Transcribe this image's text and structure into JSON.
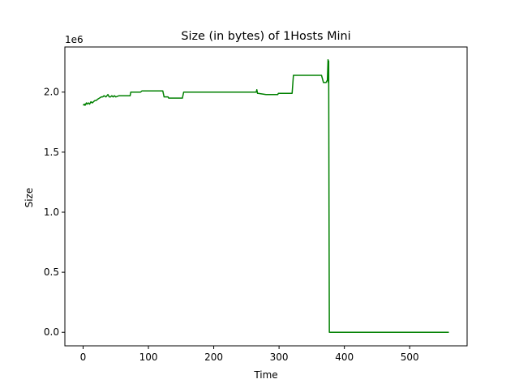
{
  "chart_data": {
    "type": "line",
    "title": "Size (in bytes) of 1Hosts Mini",
    "xlabel": "Time",
    "ylabel": "Size",
    "y_offset_label": "1e6",
    "xlim": [
      -27.9,
      587.9
    ],
    "ylim": [
      -0.113,
      2.376
    ],
    "y_scale_multiplier": 1000000,
    "x_ticks": [
      0,
      100,
      200,
      300,
      400,
      500
    ],
    "x_tick_labels": [
      "0",
      "100",
      "200",
      "300",
      "400",
      "500"
    ],
    "y_ticks": [
      0.0,
      0.5,
      1.0,
      1.5,
      2.0
    ],
    "y_tick_labels": [
      "0.0",
      "0.5",
      "1.0",
      "1.5",
      "2.0"
    ],
    "grid": false,
    "series": [
      {
        "color": "#008000",
        "x": [
          0,
          2,
          3,
          5,
          6,
          8,
          10,
          12,
          14,
          16,
          18,
          20,
          22,
          25,
          28,
          30,
          32,
          35,
          38,
          40,
          42,
          44,
          46,
          48,
          50,
          55,
          60,
          72,
          73,
          88,
          90,
          122,
          124,
          130,
          131,
          152,
          154,
          265,
          266,
          267,
          268,
          280,
          281,
          298,
          299,
          320,
          322,
          330,
          365,
          368,
          372,
          374,
          375,
          375.5,
          376,
          376.5,
          377,
          560
        ],
        "y": [
          1.89,
          1.9,
          1.89,
          1.91,
          1.9,
          1.91,
          1.9,
          1.92,
          1.91,
          1.92,
          1.93,
          1.93,
          1.94,
          1.95,
          1.96,
          1.96,
          1.97,
          1.96,
          1.98,
          1.96,
          1.96,
          1.97,
          1.96,
          1.97,
          1.96,
          1.97,
          1.97,
          1.97,
          2.0,
          2.0,
          2.01,
          2.01,
          1.96,
          1.96,
          1.95,
          1.95,
          2.0,
          2.0,
          2.02,
          1.99,
          1.99,
          1.98,
          1.98,
          1.98,
          1.99,
          1.99,
          2.14,
          2.14,
          2.14,
          2.08,
          2.08,
          2.1,
          2.27,
          2.08,
          2.26,
          1.0,
          0.0,
          0.0
        ]
      }
    ]
  }
}
